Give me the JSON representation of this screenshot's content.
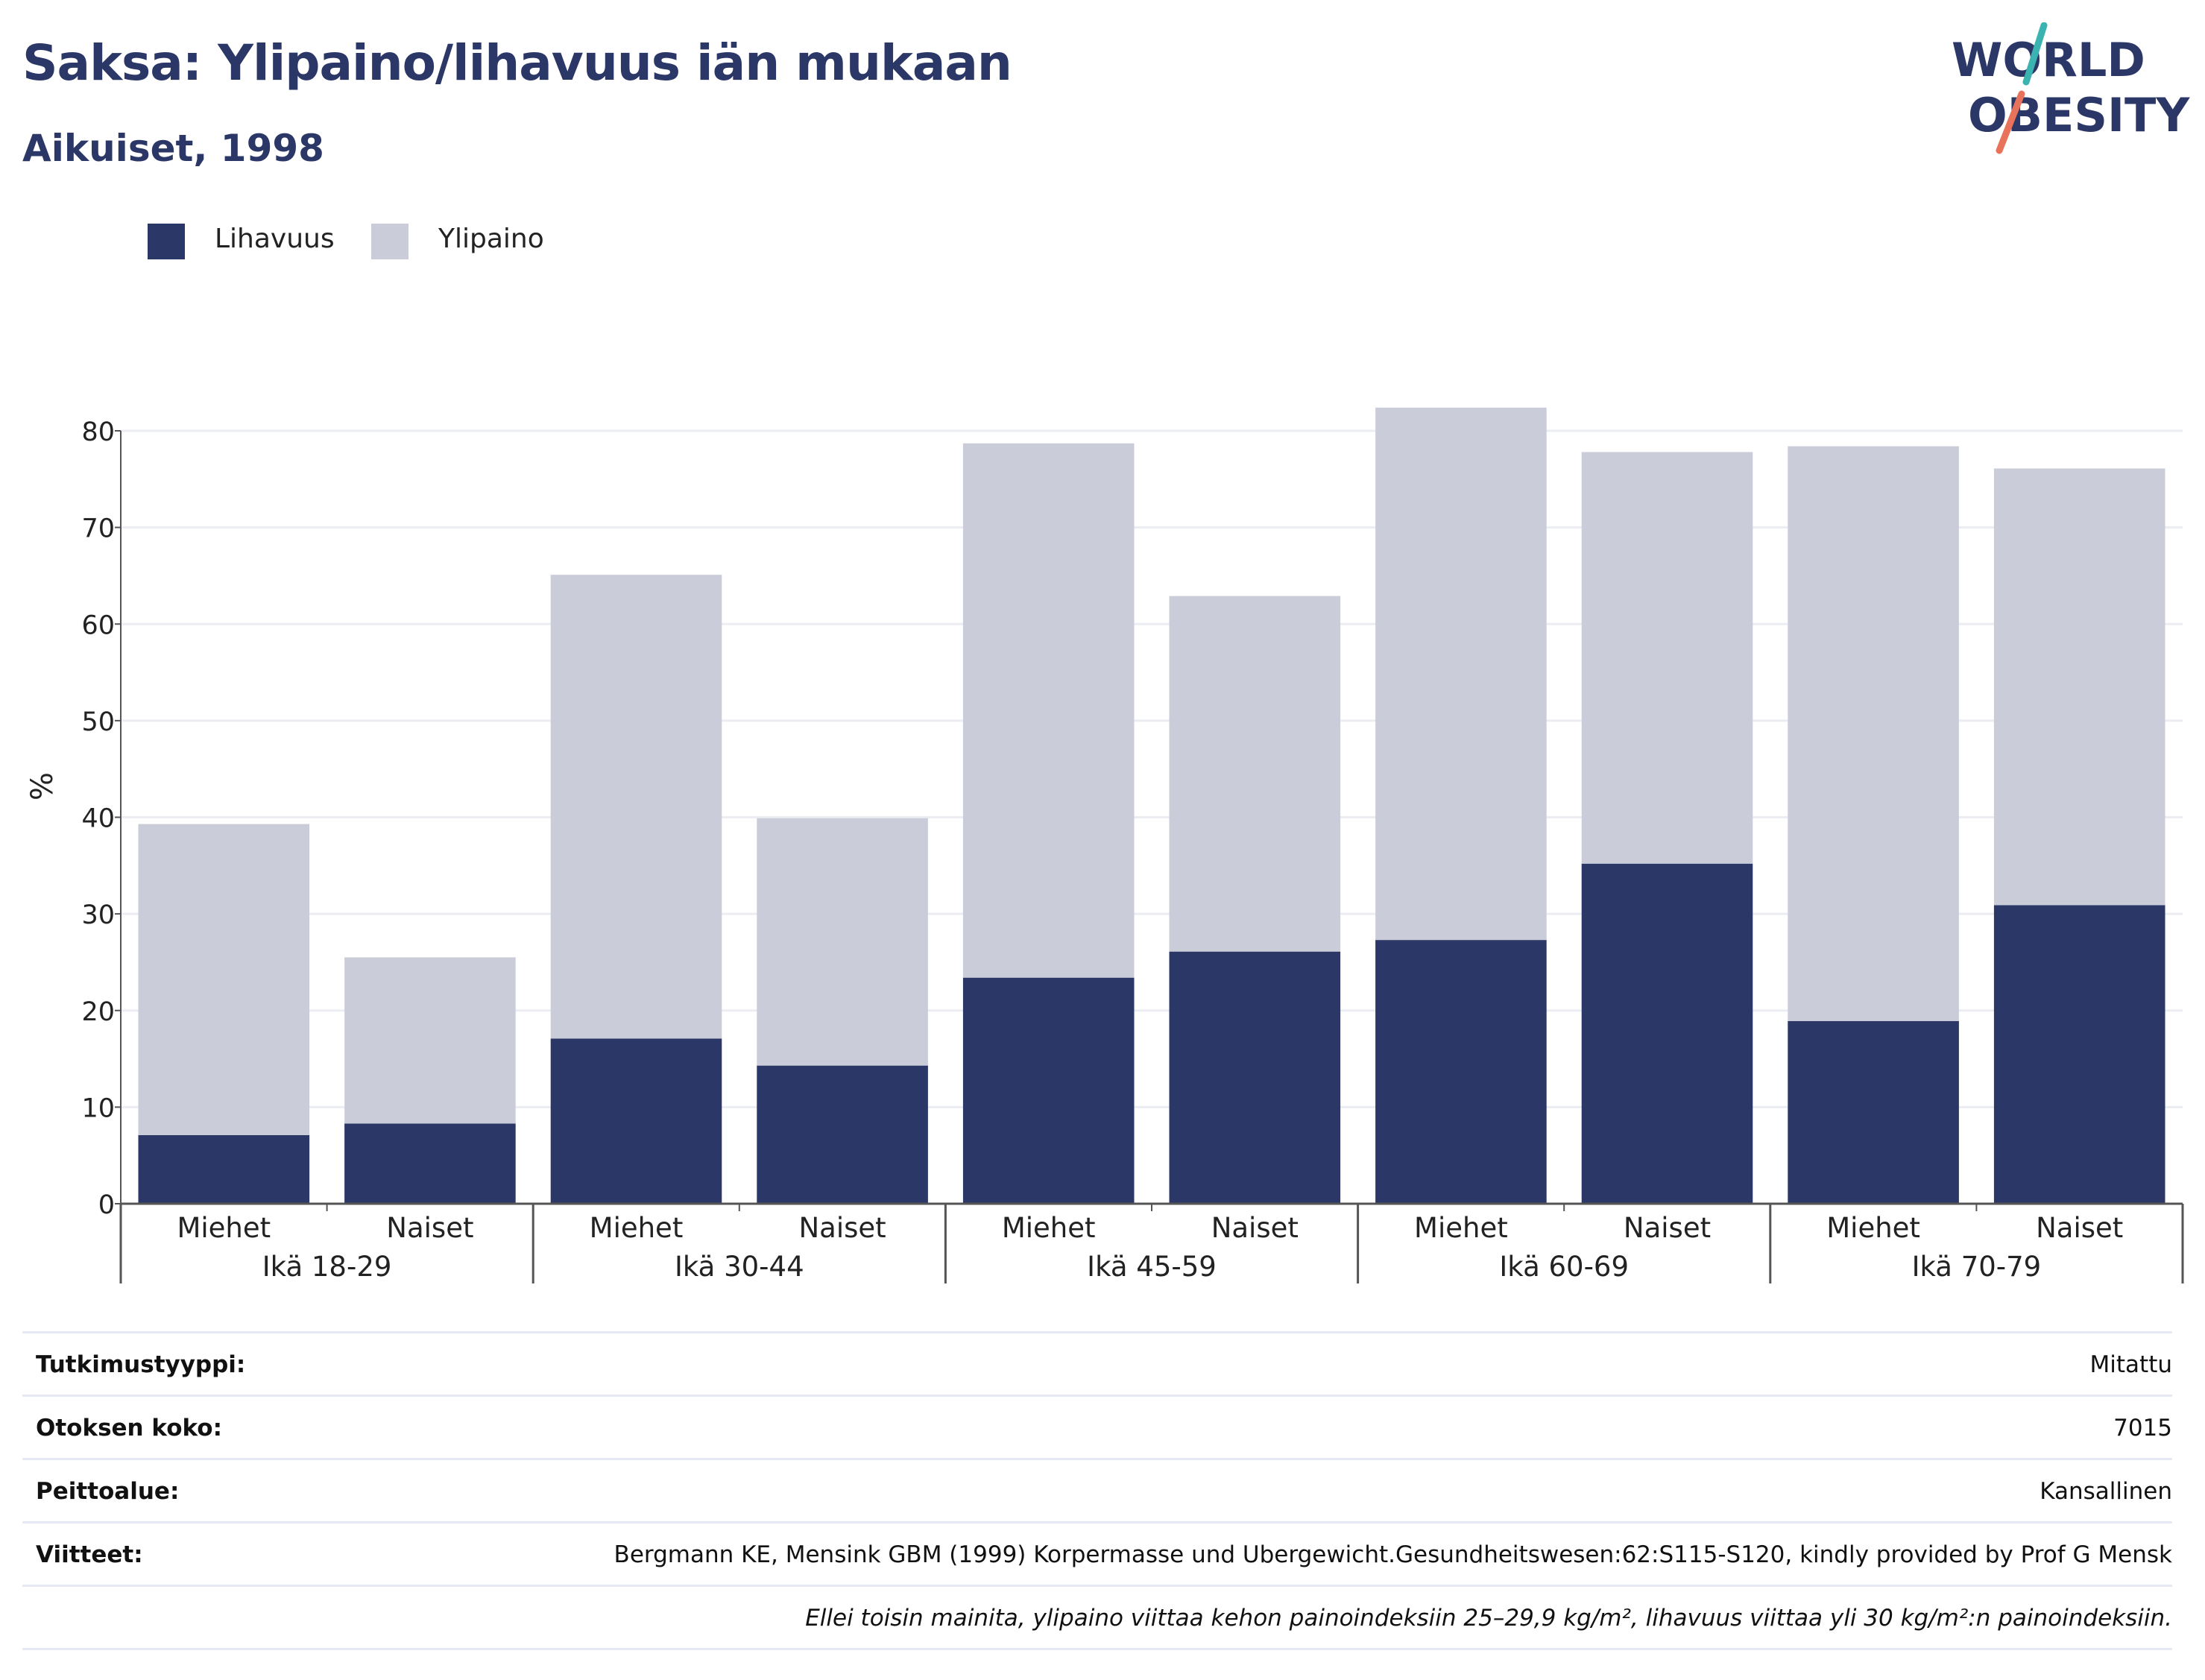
{
  "header": {
    "title": "Saksa: Ylipaino/lihavuus iän mukaan",
    "subtitle": "Aikuiset, 1998"
  },
  "logo": {
    "line1": "WORLD",
    "line2": "OBESITY",
    "colors": {
      "text": "#2b3766",
      "slash_top": "#3bb4b1",
      "slash_bottom": "#e8735a"
    }
  },
  "legend": [
    {
      "label": "Lihavuus",
      "color": "#2b3766"
    },
    {
      "label": "Ylipaino",
      "color": "#cacdd9"
    }
  ],
  "chart_data": {
    "type": "bar",
    "stacked": true,
    "ylabel": "%",
    "ylim": [
      0,
      80
    ],
    "yticks": [
      0,
      10,
      20,
      30,
      40,
      50,
      60,
      70,
      80
    ],
    "grid": true,
    "legend_position": "top-left",
    "categories": [
      "Miehet",
      "Naiset",
      "Miehet",
      "Naiset",
      "Miehet",
      "Naiset",
      "Miehet",
      "Naiset",
      "Miehet",
      "Naiset"
    ],
    "groups": [
      "Ikä 18-29",
      "Ikä 30-44",
      "Ikä 45-59",
      "Ikä 60-69",
      "Ikä 70-79"
    ],
    "series": [
      {
        "name": "Lihavuus",
        "color": "#2b3766",
        "values": [
          7.1,
          8.3,
          17.1,
          14.3,
          23.4,
          26.1,
          27.3,
          35.2,
          18.9,
          30.9
        ]
      },
      {
        "name": "Ylipaino",
        "color": "#cacdd9",
        "values": [
          32.2,
          17.2,
          48.0,
          25.6,
          55.3,
          36.8,
          55.1,
          42.6,
          59.5,
          45.2
        ]
      }
    ]
  },
  "details": {
    "study_type": {
      "label": "Tutkimustyyppi:",
      "value": "Mitattu"
    },
    "sample_size": {
      "label": "Otoksen koko:",
      "value": "7015"
    },
    "coverage": {
      "label": "Peittoalue:",
      "value": "Kansallinen"
    },
    "references": {
      "label": "Viitteet:",
      "value": "Bergmann KE, Mensink GBM (1999) Korpermasse und Ubergewicht.Gesundheitswesen:62:S115-S120, kindly provided by Prof G Mensk"
    },
    "note": "Ellei toisin mainita, ylipaino viittaa kehon painoindeksiin 25–29,9 kg/m², lihavuus viittaa yli 30 kg/m²:n painoindeksiin."
  }
}
